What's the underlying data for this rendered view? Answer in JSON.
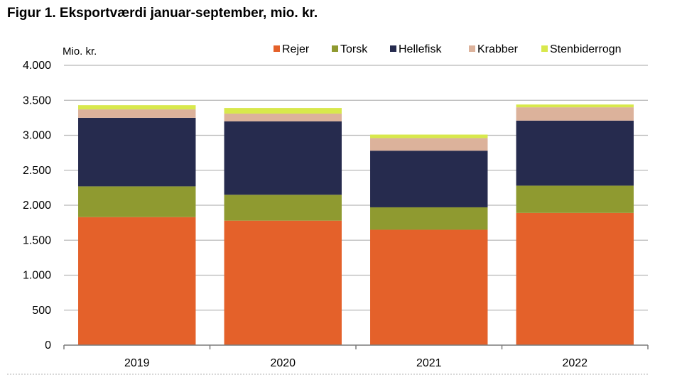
{
  "figure_title": "Figur 1. Eksportværdi januar-september, mio. kr.",
  "chart_data": {
    "type": "bar",
    "stacked": true,
    "ylabel": "Mio. kr.",
    "ylim": [
      0,
      4000
    ],
    "yticks": [
      0,
      500,
      1000,
      1500,
      2000,
      2500,
      3000,
      3500,
      4000
    ],
    "ytick_labels": [
      "0",
      "500",
      "1.000",
      "1.500",
      "2.000",
      "2.500",
      "3.000",
      "3.500",
      "4.000"
    ],
    "categories": [
      "2019",
      "2020",
      "2021",
      "2022"
    ],
    "grid": true,
    "legend_position": "top",
    "series": [
      {
        "name": "Rejer",
        "color": "#e4612a",
        "values": [
          1830,
          1780,
          1650,
          1890
        ]
      },
      {
        "name": "Torsk",
        "color": "#8f9a30",
        "values": [
          440,
          370,
          320,
          390
        ]
      },
      {
        "name": "Hellefisk",
        "color": "#262b4e",
        "values": [
          980,
          1050,
          810,
          930
        ]
      },
      {
        "name": "Krabber",
        "color": "#dcb29b",
        "values": [
          120,
          110,
          180,
          190
        ]
      },
      {
        "name": "Stenbiderrogn",
        "color": "#d8e84c",
        "values": [
          60,
          80,
          50,
          40
        ]
      }
    ]
  }
}
